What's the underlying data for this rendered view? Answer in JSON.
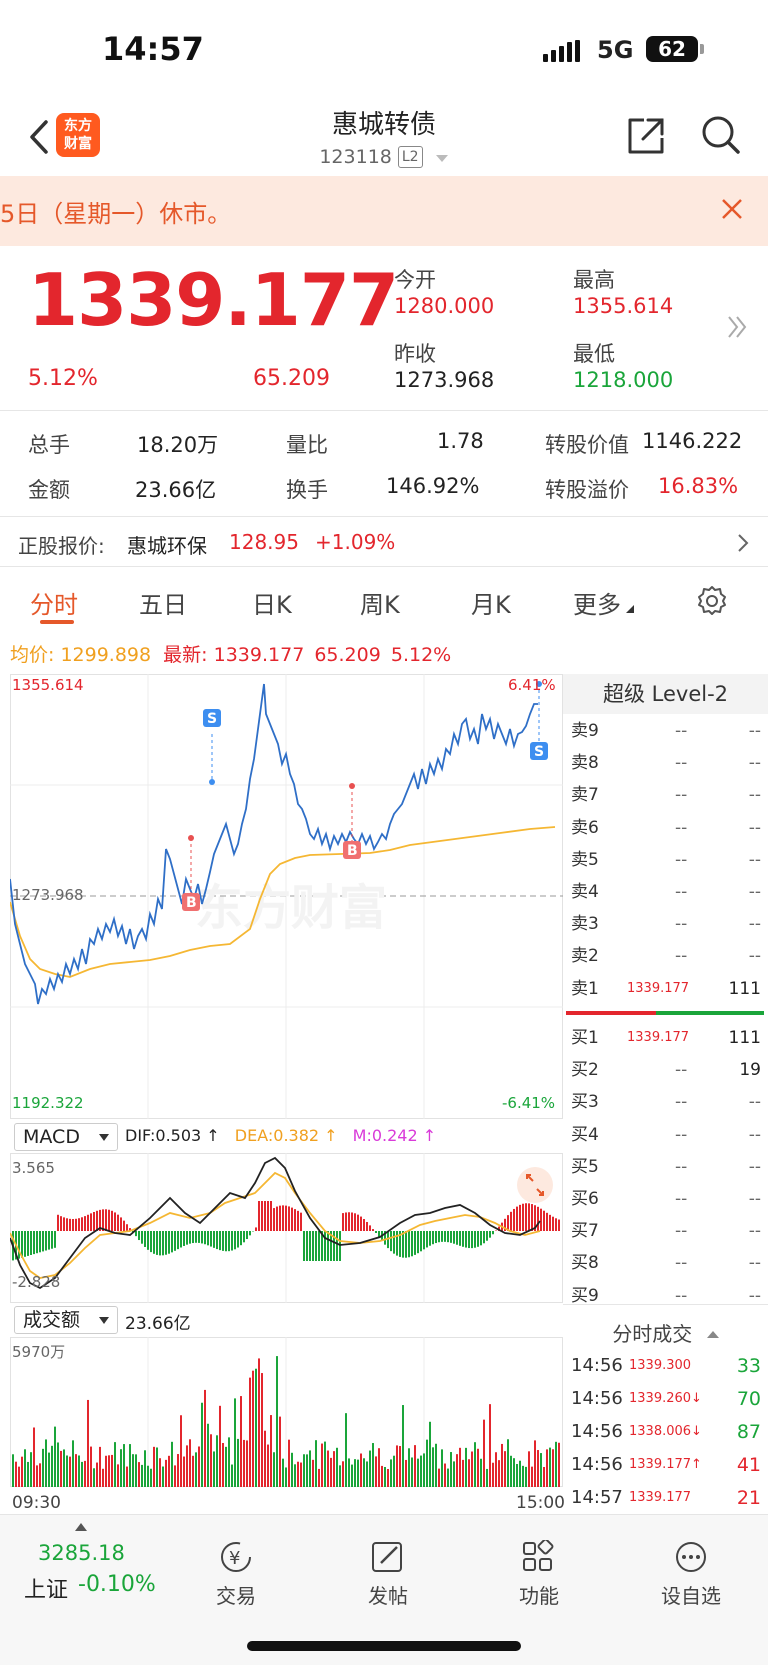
{
  "status": {
    "time": "14:57",
    "network": "5G",
    "battery": "62"
  },
  "header": {
    "logo_line1": "东方",
    "logo_line2": "财富",
    "title": "惠城转债",
    "code": "123118",
    "badge": "L2"
  },
  "notice": {
    "text": "5日（星期一）休市。"
  },
  "quote": {
    "price": "1339.177",
    "change_pct": "5.12%",
    "change": "65.209",
    "open_label": "今开",
    "open": "1280.000",
    "high_label": "最高",
    "high": "1355.614",
    "prev_label": "昨收",
    "prev": "1273.968",
    "low_label": "最低",
    "low": "1218.000"
  },
  "stats": {
    "hands_label": "总手",
    "hands": "18.20万",
    "ratio_label": "量比",
    "ratio": "1.78",
    "conv_value_label": "转股价值",
    "conv_value": "1146.222",
    "amount_label": "金额",
    "amount": "23.66亿",
    "turnover_label": "换手",
    "turnover": "146.92%",
    "premium_label": "转股溢价",
    "premium": "16.83%"
  },
  "stock": {
    "label": "正股报价:",
    "name": "惠城环保",
    "price": "128.95",
    "change": "+1.09%"
  },
  "tabs": [
    "分时",
    "五日",
    "日K",
    "周K",
    "月K",
    "更多"
  ],
  "avg_line": {
    "avg_label": "均价:",
    "avg": "1299.898",
    "latest_label": "最新:",
    "latest": "1339.177",
    "change": "65.209",
    "pct": "5.12%"
  },
  "chart": {
    "y_max": "1355.614",
    "y_min": "1192.322",
    "y_prev": "1273.968",
    "pct_max": "6.41%",
    "pct_min": "-6.41%",
    "x_start": "09:30",
    "x_end": "15:00",
    "watermark": "东方财富",
    "markers": [
      "S",
      "S",
      "B",
      "B"
    ]
  },
  "macd": {
    "selector": "MACD",
    "dif": "DIF:0.503 ↑",
    "dea": "DEA:0.382 ↑",
    "m": "M:0.242 ↑",
    "top": "3.565",
    "bottom": "-2.828"
  },
  "volume": {
    "selector": "成交额",
    "value": "23.66亿",
    "max": "5970万"
  },
  "level2": {
    "title": "超级 Level-2",
    "asks": [
      {
        "label": "卖9",
        "price": "--",
        "vol": "--"
      },
      {
        "label": "卖8",
        "price": "--",
        "vol": "--"
      },
      {
        "label": "卖7",
        "price": "--",
        "vol": "--"
      },
      {
        "label": "卖6",
        "price": "--",
        "vol": "--"
      },
      {
        "label": "卖5",
        "price": "--",
        "vol": "--"
      },
      {
        "label": "卖4",
        "price": "--",
        "vol": "--"
      },
      {
        "label": "卖3",
        "price": "--",
        "vol": "--"
      },
      {
        "label": "卖2",
        "price": "--",
        "vol": "--"
      },
      {
        "label": "卖1",
        "price": "1339.177",
        "vol": "111"
      }
    ],
    "bids": [
      {
        "label": "买1",
        "price": "1339.177",
        "vol": "111"
      },
      {
        "label": "买2",
        "price": "--",
        "vol": "19"
      },
      {
        "label": "买3",
        "price": "--",
        "vol": "--"
      },
      {
        "label": "买4",
        "price": "--",
        "vol": "--"
      },
      {
        "label": "买5",
        "price": "--",
        "vol": "--"
      },
      {
        "label": "买6",
        "price": "--",
        "vol": "--"
      },
      {
        "label": "买7",
        "price": "--",
        "vol": "--"
      },
      {
        "label": "买8",
        "price": "--",
        "vol": "--"
      },
      {
        "label": "买9",
        "price": "--",
        "vol": "--"
      }
    ],
    "trades_title": "分时成交",
    "trades": [
      {
        "time": "14:56",
        "price": "1339.300",
        "arrow": "",
        "vol": "33",
        "color": "green"
      },
      {
        "time": "14:56",
        "price": "1339.260",
        "arrow": "↓",
        "vol": "70",
        "color": "green"
      },
      {
        "time": "14:56",
        "price": "1338.006",
        "arrow": "↓",
        "vol": "87",
        "color": "green"
      },
      {
        "time": "14:56",
        "price": "1339.177",
        "arrow": "↑",
        "vol": "41",
        "color": "red"
      },
      {
        "time": "14:57",
        "price": "1339.177",
        "arrow": "",
        "vol": "21",
        "color": "red"
      }
    ]
  },
  "bottom_nav": {
    "index_value": "3285.18",
    "index_name": "上证",
    "index_change": "-0.10%",
    "items": [
      "交易",
      "发帖",
      "功能",
      "设自选"
    ]
  },
  "colors": {
    "up": "#e3262d",
    "down": "#1aa53a",
    "accent": "#e5582a",
    "price_line": "#2f6fc7",
    "avg_line": "#f5b733"
  }
}
